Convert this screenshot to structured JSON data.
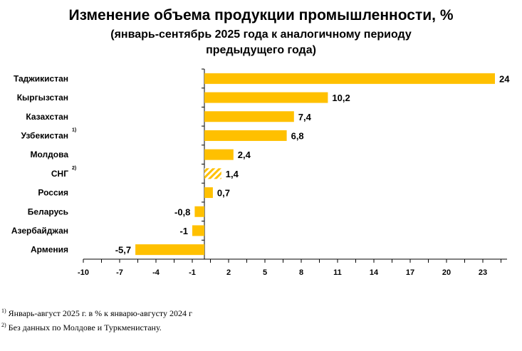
{
  "chart_data": {
    "type": "bar",
    "orientation": "horizontal",
    "title": "Изменение объема продукции промышленности, %",
    "subtitle": "(январь-сентябрь 2025 года к аналогичному периоду предыдущего года)",
    "categories": [
      "Таджикистан",
      "Кыргызстан",
      "Казахстан",
      "Узбекистан",
      "Молдова",
      "СНГ",
      "Россия",
      "Беларусь",
      "Азербайджан",
      "Армения"
    ],
    "category_notes": [
      "",
      "",
      "",
      "1)",
      "",
      "2)",
      "",
      "",
      "",
      ""
    ],
    "values": [
      24,
      10.2,
      7.4,
      6.8,
      2.4,
      1.4,
      0.7,
      -0.8,
      -1,
      -5.7
    ],
    "value_labels": [
      "24",
      "10,2",
      "7,4",
      "6,8",
      "2,4",
      "1,4",
      "0,7",
      "-0,8",
      "-1",
      "-5,7"
    ],
    "hatched": [
      false,
      false,
      false,
      false,
      false,
      true,
      false,
      false,
      false,
      false
    ],
    "xlim": [
      -10,
      25
    ],
    "xticks": [
      -10,
      -7,
      -4,
      -1,
      2,
      5,
      8,
      11,
      14,
      17,
      20,
      23
    ],
    "grid": false,
    "bar_color": "#FFC000"
  },
  "footnotes": [
    {
      "mark": "1)",
      "text": "Январь-август 2025 г. в % к январю-августу 2024 г"
    },
    {
      "mark": "2)",
      "text": "Без данных по Молдове и Туркменистану."
    }
  ]
}
